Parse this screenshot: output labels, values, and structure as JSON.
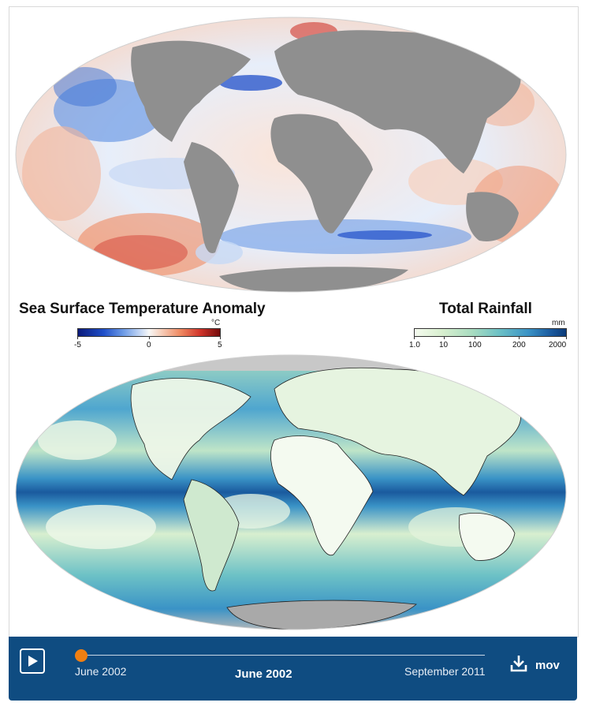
{
  "sst_panel": {
    "title": "Sea Surface Temperature Anomaly",
    "unit": "°C",
    "ticks": [
      "-5",
      "0",
      "5"
    ],
    "colors": {
      "cold": "#0b1a7a",
      "neutral": "#f7f7f7",
      "warm": "#730b0b",
      "land": "#8f8f8f"
    }
  },
  "rain_panel": {
    "title": "Total Rainfall",
    "unit": "mm",
    "ticks": [
      "1.0",
      "10",
      "100",
      "200",
      "2000"
    ],
    "colors": {
      "low": "#f5fbef",
      "mid": "#6cc1c6",
      "high": "#0b3a78",
      "land_ice": "#b8b8b8"
    }
  },
  "player": {
    "play_icon": "play-icon",
    "start_label": "June 2002",
    "current_label": "June 2002",
    "end_label": "September 2011",
    "progress": 0,
    "download_icon": "download-icon",
    "download_label": "mov",
    "accent": "#f07f12",
    "bar_color": "#0f4c81"
  }
}
